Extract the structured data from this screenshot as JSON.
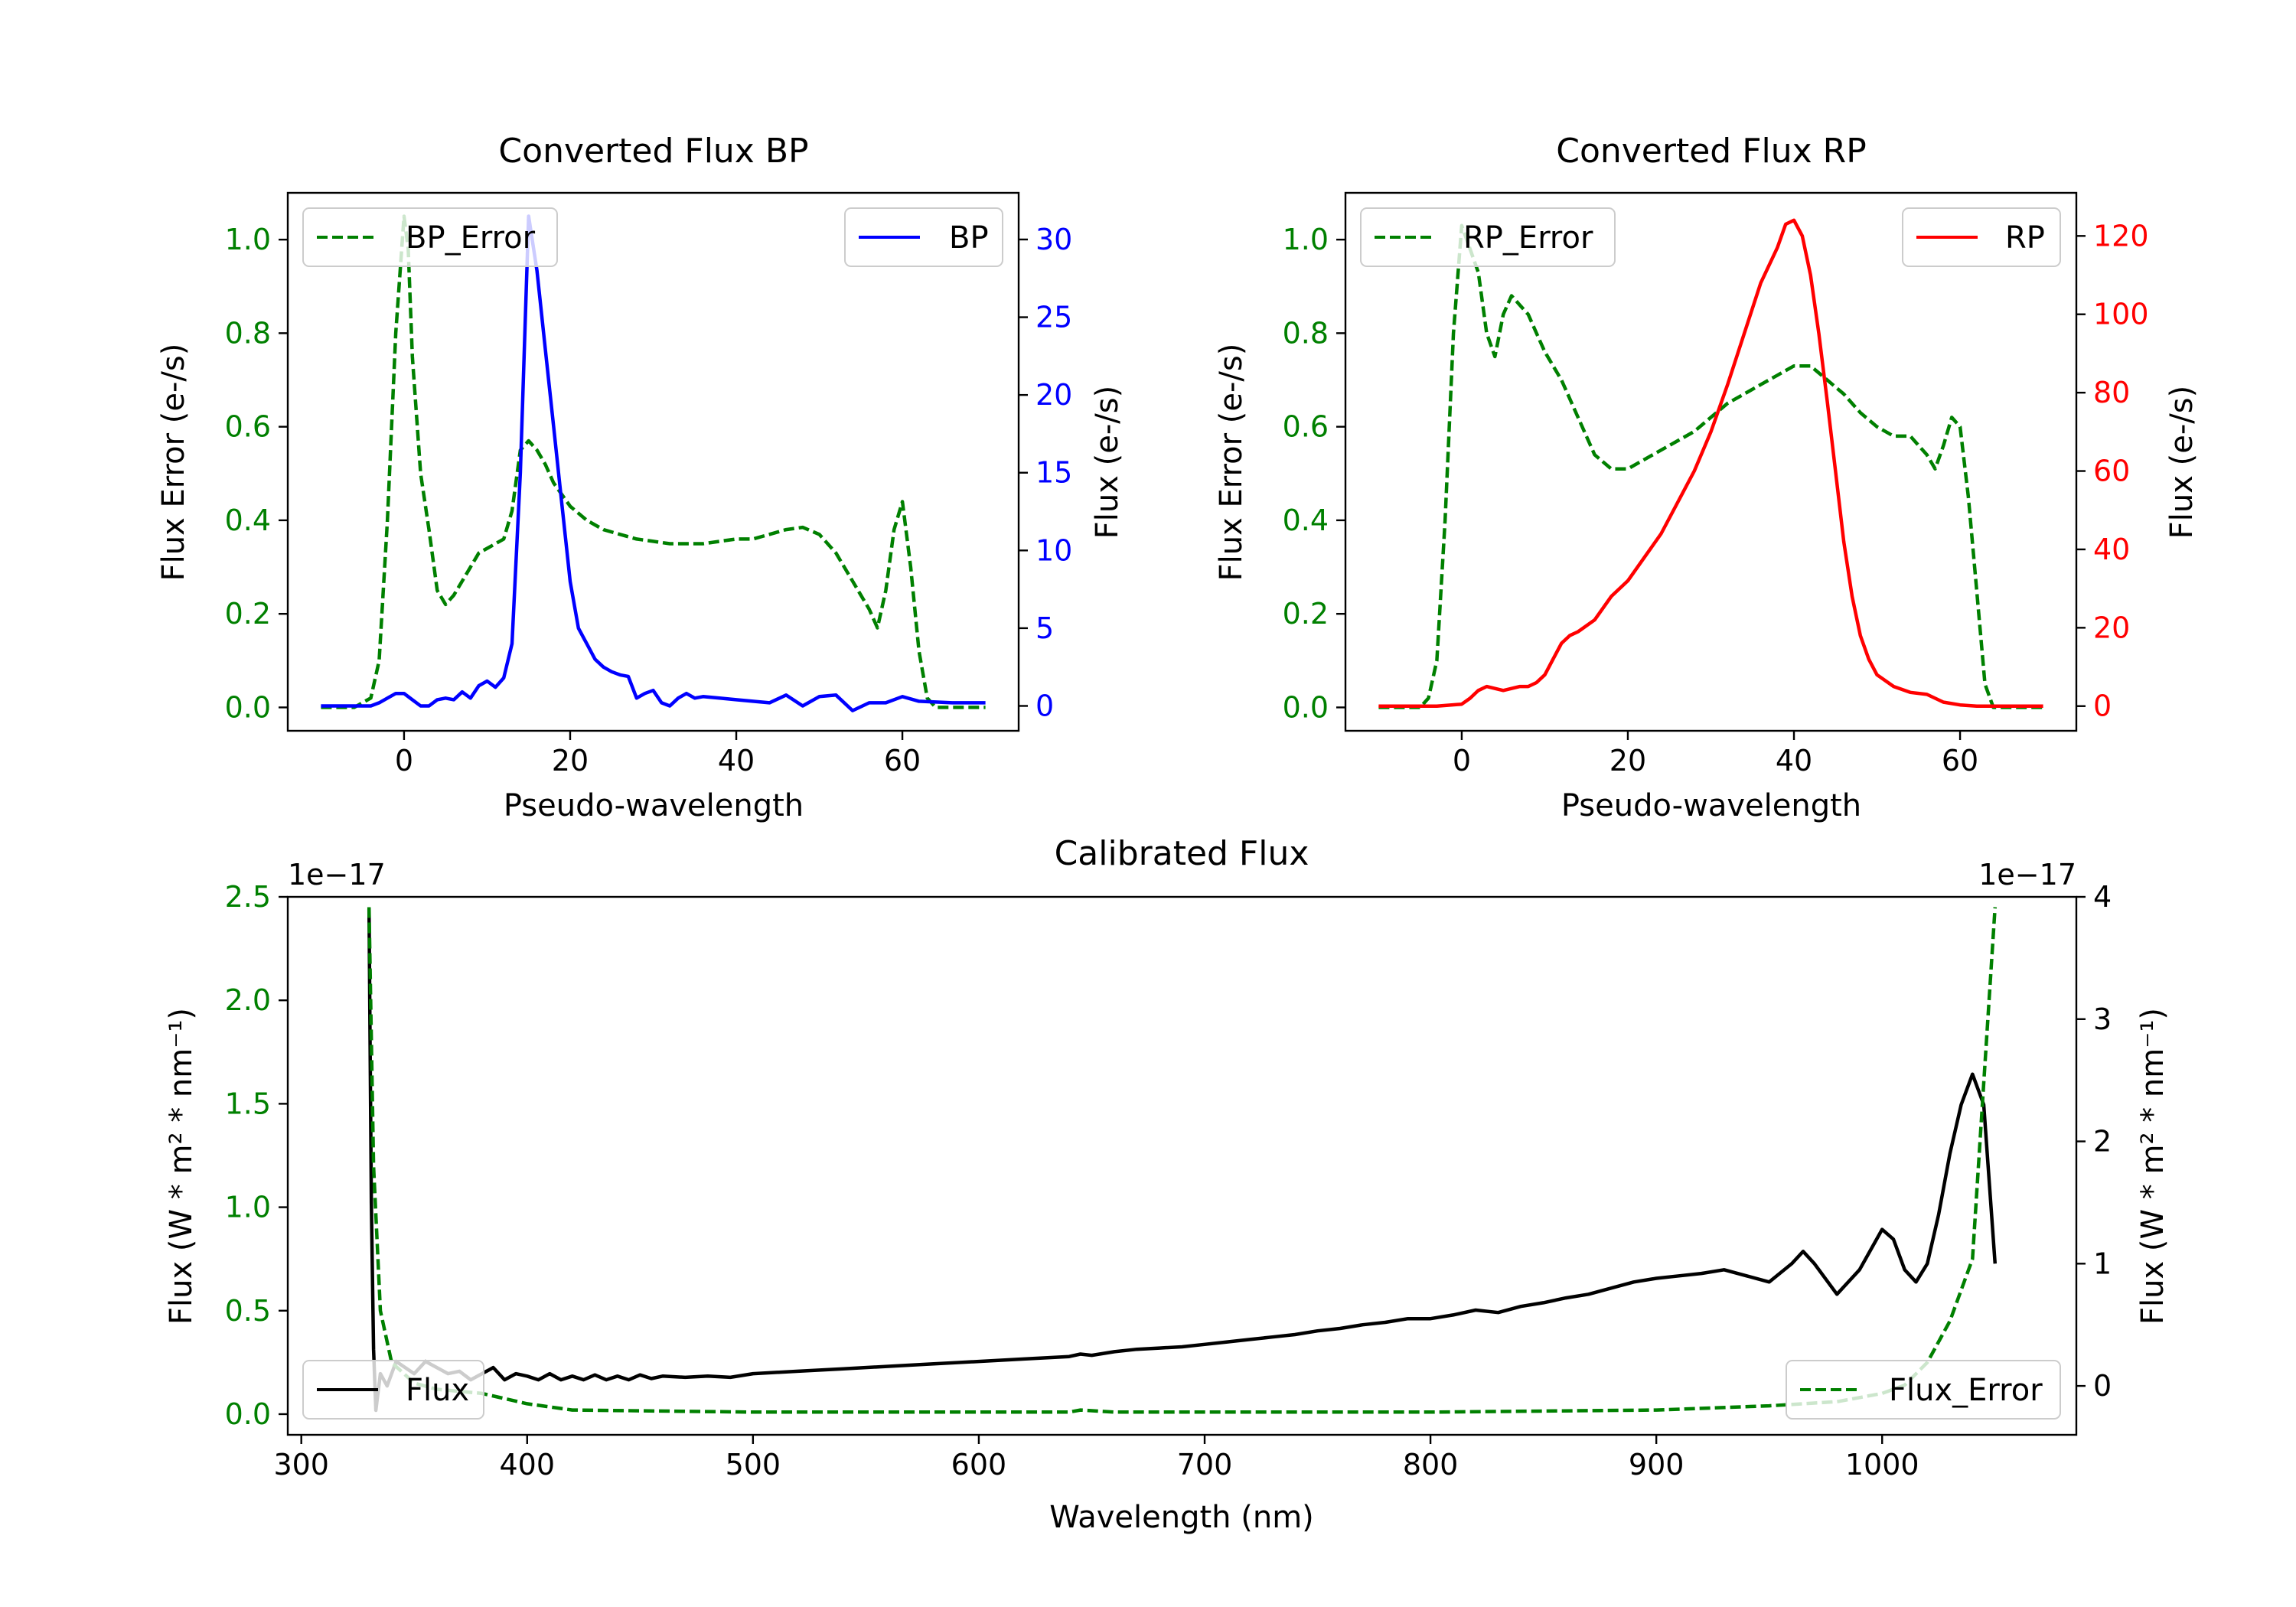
{
  "colors": {
    "bp": "#0000ff",
    "bp_error": "#008000",
    "rp": "#ff0000",
    "rp_error": "#008000",
    "flux": "#000000",
    "flux_error": "#008000",
    "axes": "#000000"
  },
  "chart_data": [
    {
      "id": "bp",
      "type": "line",
      "title": "Converted Flux BP",
      "xlabel": "Pseudo-wavelength",
      "ylabel_left": "Flux Error (e-/s)",
      "ylabel_right": "Flux (e-/s)",
      "xlim": [
        -14,
        74
      ],
      "ylim_left": [
        -0.05,
        1.1
      ],
      "ylim_right": [
        -1.6,
        33
      ],
      "xticks": [
        0,
        20,
        40,
        60
      ],
      "yticks_left": [
        0.0,
        0.2,
        0.4,
        0.6,
        0.8,
        1.0
      ],
      "yticks_right": [
        0,
        5,
        10,
        15,
        20,
        25,
        30
      ],
      "legend_left": "BP_Error",
      "legend_right": "BP",
      "series": [
        {
          "name": "BP_Error",
          "axis": "left",
          "style": "dashed",
          "color_key": "bp_error",
          "x": [
            -10,
            -6,
            -4,
            -3,
            -2,
            -1,
            0,
            0.5,
            1,
            2,
            3,
            4,
            5,
            6,
            7,
            8,
            9,
            10,
            12,
            13,
            14,
            15,
            16,
            17,
            18,
            20,
            22,
            24,
            26,
            28,
            30,
            32,
            34,
            36,
            38,
            40,
            42,
            44,
            46,
            48,
            50,
            52,
            54,
            56,
            57,
            58,
            59,
            60,
            61,
            62,
            63,
            64,
            66,
            70
          ],
          "y": [
            0.0,
            0.0,
            0.02,
            0.1,
            0.4,
            0.8,
            1.05,
            0.98,
            0.75,
            0.5,
            0.38,
            0.25,
            0.22,
            0.24,
            0.27,
            0.3,
            0.33,
            0.34,
            0.36,
            0.42,
            0.55,
            0.57,
            0.55,
            0.52,
            0.48,
            0.43,
            0.4,
            0.38,
            0.37,
            0.36,
            0.355,
            0.35,
            0.35,
            0.35,
            0.355,
            0.36,
            0.36,
            0.37,
            0.38,
            0.385,
            0.37,
            0.33,
            0.27,
            0.21,
            0.17,
            0.25,
            0.38,
            0.44,
            0.3,
            0.12,
            0.02,
            0.0,
            0.0,
            0.0
          ]
        },
        {
          "name": "BP",
          "axis": "right",
          "style": "solid",
          "color_key": "bp",
          "x": [
            -10,
            -6,
            -4,
            -3,
            -2,
            -1,
            0,
            1,
            2,
            3,
            4,
            5,
            6,
            7,
            8,
            9,
            10,
            11,
            12,
            13,
            14,
            15,
            16,
            17,
            18,
            19,
            20,
            21,
            22,
            23,
            24,
            25,
            26,
            27,
            28,
            29,
            30,
            31,
            32,
            33,
            34,
            35,
            36,
            38,
            40,
            42,
            44,
            46,
            48,
            50,
            52,
            54,
            56,
            58,
            60,
            62,
            66,
            70
          ],
          "y": [
            0,
            0,
            0,
            0.2,
            0.5,
            0.8,
            0.8,
            0.4,
            0.0,
            0.0,
            0.4,
            0.5,
            0.4,
            0.9,
            0.5,
            1.3,
            1.6,
            1.2,
            1.8,
            4.0,
            15.0,
            31.5,
            28.0,
            23.0,
            18.0,
            13.0,
            8.0,
            5.0,
            4.0,
            3.0,
            2.5,
            2.2,
            2.0,
            1.9,
            0.5,
            0.8,
            1.0,
            0.2,
            0.0,
            0.5,
            0.8,
            0.5,
            0.6,
            0.5,
            0.4,
            0.3,
            0.2,
            0.7,
            0.0,
            0.6,
            0.7,
            -0.3,
            0.2,
            0.2,
            0.6,
            0.3,
            0.2,
            0.2
          ]
        }
      ]
    },
    {
      "id": "rp",
      "type": "line",
      "title": "Converted Flux RP",
      "xlabel": "Pseudo-wavelength",
      "ylabel_left": "Flux Error (e-/s)",
      "ylabel_right": "Flux (e-/s)",
      "xlim": [
        -14,
        74
      ],
      "ylim_left": [
        -0.05,
        1.1
      ],
      "ylim_right": [
        -6.3,
        131
      ],
      "xticks": [
        0,
        20,
        40,
        60
      ],
      "yticks_left": [
        0.0,
        0.2,
        0.4,
        0.6,
        0.8,
        1.0
      ],
      "yticks_right": [
        0,
        20,
        40,
        60,
        80,
        100,
        120
      ],
      "legend_left": "RP_Error",
      "legend_right": "RP",
      "series": [
        {
          "name": "RP_Error",
          "axis": "left",
          "style": "dashed",
          "color_key": "rp_error",
          "x": [
            -10,
            -5,
            -4,
            -3,
            -2,
            -1,
            0,
            1,
            2,
            3,
            4,
            5,
            6,
            7,
            8,
            9,
            10,
            12,
            14,
            16,
            18,
            20,
            22,
            24,
            26,
            28,
            30,
            32,
            34,
            36,
            38,
            40,
            42,
            44,
            46,
            48,
            50,
            52,
            54,
            55,
            56,
            57,
            58,
            59,
            60,
            61,
            62,
            63,
            64,
            70
          ],
          "y": [
            0.0,
            0.0,
            0.02,
            0.1,
            0.4,
            0.8,
            1.03,
            0.98,
            0.93,
            0.8,
            0.75,
            0.84,
            0.88,
            0.86,
            0.84,
            0.8,
            0.76,
            0.7,
            0.62,
            0.54,
            0.51,
            0.51,
            0.53,
            0.55,
            0.57,
            0.59,
            0.62,
            0.65,
            0.67,
            0.69,
            0.71,
            0.73,
            0.73,
            0.7,
            0.67,
            0.63,
            0.6,
            0.58,
            0.58,
            0.56,
            0.54,
            0.51,
            0.56,
            0.62,
            0.6,
            0.45,
            0.25,
            0.05,
            0.0,
            0.0
          ]
        },
        {
          "name": "RP",
          "axis": "right",
          "style": "solid",
          "color_key": "rp",
          "x": [
            -10,
            -3,
            0,
            1,
            2,
            3,
            4,
            5,
            6,
            7,
            8,
            9,
            10,
            11,
            12,
            13,
            14,
            16,
            18,
            20,
            22,
            24,
            26,
            28,
            30,
            32,
            34,
            36,
            38,
            39,
            40,
            41,
            42,
            43,
            44,
            45,
            46,
            47,
            48,
            49,
            50,
            52,
            54,
            56,
            58,
            60,
            62,
            66,
            70
          ],
          "y": [
            0,
            0,
            0.5,
            2.0,
            4.0,
            5.0,
            4.5,
            4.0,
            4.5,
            5.0,
            5.0,
            6.0,
            8.0,
            12.0,
            16.0,
            18.0,
            19.0,
            22.0,
            28.0,
            32.0,
            38.0,
            44.0,
            52.0,
            60.0,
            70.0,
            82.0,
            95.0,
            108.0,
            117.0,
            123.0,
            124.0,
            120.0,
            110.0,
            95.0,
            78.0,
            60.0,
            42.0,
            28.0,
            18.0,
            12.0,
            8.0,
            5.0,
            3.5,
            3.0,
            1.0,
            0.3,
            0,
            0,
            0
          ]
        }
      ]
    },
    {
      "id": "cal",
      "type": "line",
      "title": "Calibrated Flux",
      "xlabel": "Wavelength (nm)",
      "ylabel_left": "Flux (W * m² * nm⁻¹)",
      "ylabel_right": "Flux (W * m² * nm⁻¹)",
      "offset_left": "1e−17",
      "offset_right": "1e−17",
      "xlim": [
        294,
        1086
      ],
      "ylim_left": [
        -0.1,
        2.5
      ],
      "ylim_right": [
        -0.4,
        4.0
      ],
      "xticks": [
        300,
        400,
        500,
        600,
        700,
        800,
        900,
        1000
      ],
      "yticks_left": [
        0.0,
        0.5,
        1.0,
        1.5,
        2.0,
        2.5
      ],
      "yticks_right": [
        0,
        1,
        2,
        3,
        4
      ],
      "legend_left": "Flux",
      "legend_right": "Flux_Error",
      "series": [
        {
          "name": "Flux",
          "axis": "right",
          "style": "solid",
          "color_key": "flux",
          "x": [
            330,
            331,
            332,
            333,
            335,
            338,
            342,
            346,
            350,
            355,
            360,
            365,
            370,
            375,
            380,
            385,
            390,
            395,
            400,
            405,
            410,
            415,
            420,
            425,
            430,
            435,
            440,
            445,
            450,
            455,
            460,
            470,
            480,
            490,
            500,
            520,
            540,
            560,
            580,
            600,
            620,
            640,
            645,
            650,
            660,
            670,
            680,
            690,
            700,
            710,
            720,
            730,
            740,
            750,
            760,
            770,
            780,
            790,
            800,
            810,
            820,
            830,
            840,
            850,
            860,
            870,
            880,
            890,
            900,
            910,
            920,
            930,
            940,
            950,
            960,
            965,
            970,
            980,
            990,
            1000,
            1005,
            1010,
            1015,
            1020,
            1025,
            1030,
            1035,
            1040,
            1045,
            1050
          ],
          "y": [
            3.9,
            1.5,
            0.3,
            -0.2,
            0.1,
            0.0,
            0.2,
            0.15,
            0.1,
            0.2,
            0.15,
            0.1,
            0.12,
            0.05,
            0.1,
            0.15,
            0.05,
            0.1,
            0.08,
            0.05,
            0.1,
            0.05,
            0.08,
            0.05,
            0.09,
            0.05,
            0.08,
            0.05,
            0.09,
            0.06,
            0.08,
            0.07,
            0.08,
            0.07,
            0.1,
            0.12,
            0.14,
            0.16,
            0.18,
            0.2,
            0.22,
            0.24,
            0.26,
            0.25,
            0.28,
            0.3,
            0.31,
            0.32,
            0.34,
            0.36,
            0.38,
            0.4,
            0.42,
            0.45,
            0.47,
            0.5,
            0.52,
            0.55,
            0.55,
            0.58,
            0.62,
            0.6,
            0.65,
            0.68,
            0.72,
            0.75,
            0.8,
            0.85,
            0.88,
            0.9,
            0.92,
            0.95,
            0.9,
            0.85,
            1.0,
            1.1,
            1.0,
            0.75,
            0.95,
            1.28,
            1.2,
            0.95,
            0.85,
            1.0,
            1.4,
            1.9,
            2.3,
            2.55,
            2.3,
            1.0
          ]
        },
        {
          "name": "Flux_Error",
          "axis": "left",
          "style": "dashed",
          "color_key": "flux_error",
          "x": [
            330,
            332,
            335,
            340,
            350,
            360,
            380,
            400,
            420,
            500,
            600,
            640,
            645,
            660,
            700,
            800,
            900,
            950,
            980,
            1000,
            1010,
            1020,
            1030,
            1040,
            1045,
            1050
          ],
          "y": [
            2.45,
            1.2,
            0.5,
            0.25,
            0.15,
            0.12,
            0.1,
            0.05,
            0.02,
            0.01,
            0.01,
            0.01,
            0.02,
            0.01,
            0.01,
            0.01,
            0.02,
            0.04,
            0.06,
            0.1,
            0.14,
            0.25,
            0.45,
            0.75,
            1.6,
            2.45
          ]
        }
      ]
    }
  ]
}
